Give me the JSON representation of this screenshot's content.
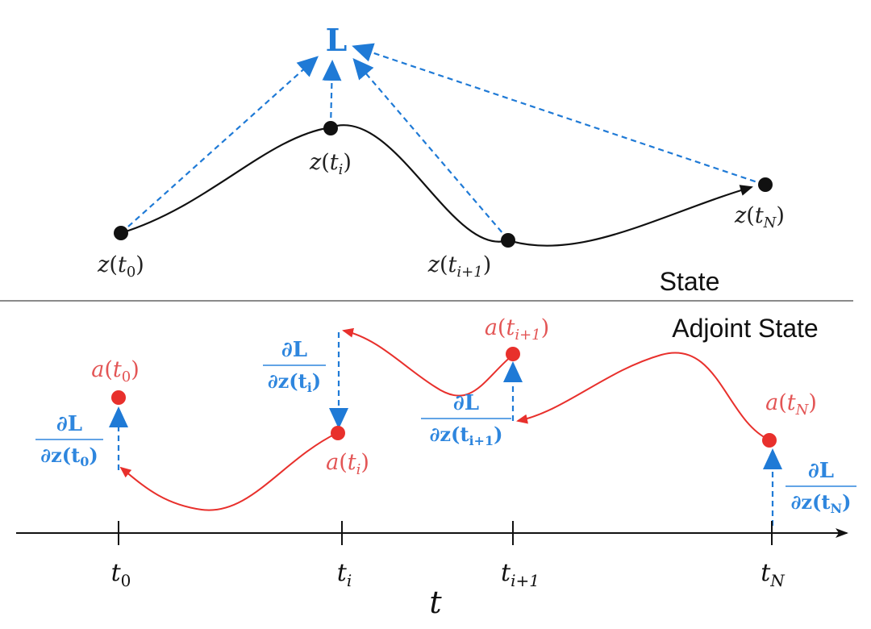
{
  "colors": {
    "black": "#111111",
    "blue": "#1f7ad6",
    "blue_text": "#2e86de",
    "red": "#e8302c",
    "red_text": "#e35555",
    "divider": "#8a8a8a"
  },
  "loss_label": "L",
  "section_labels": {
    "state": "State",
    "adjoint": "Adjoint State"
  },
  "state_points": [
    {
      "fn": "z",
      "sub": "0"
    },
    {
      "fn": "z",
      "sub": "i"
    },
    {
      "fn": "z",
      "sub": "i+1"
    },
    {
      "fn": "z",
      "sub": "N"
    }
  ],
  "adjoint_points": [
    {
      "fn": "a",
      "sub": "0"
    },
    {
      "fn": "a",
      "sub": "i"
    },
    {
      "fn": "a",
      "sub": "i+1"
    },
    {
      "fn": "a",
      "sub": "N"
    }
  ],
  "gradients": [
    {
      "num": "∂L",
      "den_prefix": "∂z(t",
      "den_sub": "0",
      "den_suffix": ")"
    },
    {
      "num": "∂L",
      "den_prefix": "∂z(t",
      "den_sub": "i",
      "den_suffix": ")"
    },
    {
      "num": "∂L",
      "den_prefix": "∂z(t",
      "den_sub": "i+1",
      "den_suffix": ")"
    },
    {
      "num": "∂L",
      "den_prefix": "∂z(t",
      "den_sub": "N",
      "den_suffix": ")"
    }
  ],
  "axis": {
    "label": "t",
    "ticks": [
      {
        "main": "t",
        "sub": "0"
      },
      {
        "main": "t",
        "sub": "i"
      },
      {
        "main": "t",
        "sub": "i+1"
      },
      {
        "main": "t",
        "sub": "N"
      }
    ]
  }
}
